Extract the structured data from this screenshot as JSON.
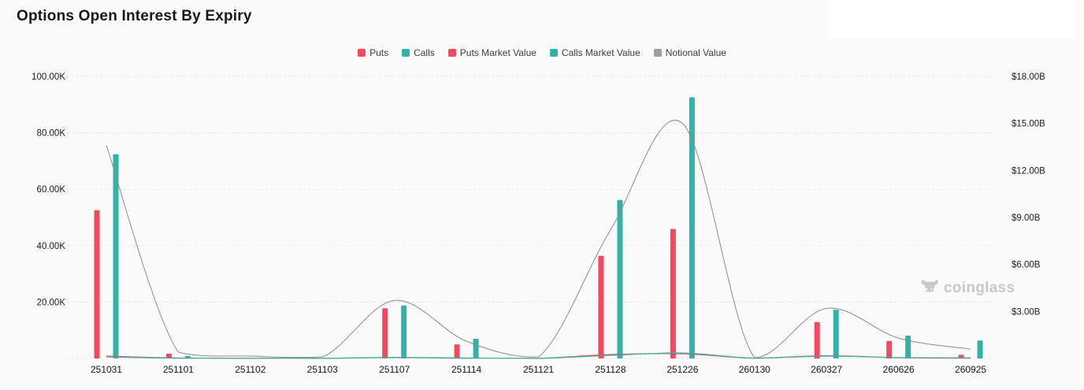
{
  "title": "Options Open Interest By Expiry",
  "watermark": {
    "text": "coinglass",
    "icon": "bull-logo-icon"
  },
  "legend": [
    {
      "label": "Puts",
      "color": "#f5485d"
    },
    {
      "label": "Calls",
      "color": "#32b3a5"
    },
    {
      "label": "Puts Market Value",
      "color": "#f5485d"
    },
    {
      "label": "Calls Market Value",
      "color": "#32b3a5"
    },
    {
      "label": "Notional Value",
      "color": "#9e9e9e"
    }
  ],
  "colors": {
    "background": "#fafafa",
    "panel": "#ffffff",
    "grid": "#e6e6e6",
    "puts": "#f5485d",
    "calls": "#32b3a5",
    "notional_line": "#8c8c8c",
    "axis_text": "#1c1c1c",
    "watermark": "#c6c9cc"
  },
  "chart_data": {
    "type": "bar",
    "subtype": "bar+line combo, dual axis",
    "title": "Options Open Interest By Expiry",
    "categories": [
      "251031",
      "251101",
      "251102",
      "251103",
      "251107",
      "251114",
      "251121",
      "251128",
      "251226",
      "260130",
      "260327",
      "260626",
      "260925"
    ],
    "left_axis": {
      "tick_labels": [
        "100.00K",
        "80.00K",
        "60.00K",
        "40.00K",
        "20.00K"
      ],
      "tick_values": [
        100,
        80,
        60,
        40,
        20
      ],
      "range": [
        0,
        100
      ],
      "unit": "K"
    },
    "right_axis": {
      "tick_labels": [
        "$18.00B",
        "$15.00B",
        "$12.00B",
        "$9.00B",
        "$6.00B",
        "$3.00B"
      ],
      "tick_values": [
        18,
        15,
        12,
        9,
        6,
        3
      ],
      "range": [
        0,
        18
      ],
      "unit": "$B"
    },
    "series": [
      {
        "name": "Puts",
        "type": "bar",
        "axis": "left",
        "unit": "K",
        "color": "#f5485d",
        "values": [
          52.6,
          1.7,
          0.2,
          0.1,
          17.8,
          5.0,
          0.1,
          36.4,
          45.9,
          0.2,
          12.9,
          6.2,
          1.3
        ]
      },
      {
        "name": "Calls",
        "type": "bar",
        "axis": "left",
        "unit": "K",
        "color": "#32b3a5",
        "values": [
          72.4,
          0.9,
          0.2,
          0.1,
          18.8,
          7.0,
          0.1,
          56.2,
          92.6,
          0.2,
          17.3,
          8.1,
          6.4
        ]
      },
      {
        "name": "Puts Market Value",
        "type": "line",
        "axis": "right",
        "unit": "$B",
        "color": "#f5485d",
        "values": [
          0.15,
          0.03,
          0.01,
          0.01,
          0.06,
          0.02,
          0.01,
          0.25,
          0.3,
          0.02,
          0.18,
          0.05,
          0.02
        ]
      },
      {
        "name": "Calls Market Value",
        "type": "line",
        "axis": "right",
        "unit": "$B",
        "color": "#32b3a5",
        "values": [
          0.1,
          0.02,
          0.01,
          0.01,
          0.07,
          0.03,
          0.01,
          0.2,
          0.35,
          0.02,
          0.15,
          0.06,
          0.04
        ]
      },
      {
        "name": "Notional Value",
        "type": "line",
        "axis": "right",
        "unit": "$B",
        "color": "#8c8c8c",
        "values": [
          13.6,
          0.4,
          0.15,
          0.1,
          3.7,
          1.1,
          0.1,
          8.2,
          15.0,
          0.05,
          3.2,
          1.3,
          0.6
        ]
      }
    ],
    "grid": "horizontal dashed lines on, vertical off",
    "legend_position": "top-center",
    "legend_entries": [
      "Puts",
      "Calls",
      "Puts Market Value",
      "Calls Market Value",
      "Notional Value"
    ]
  }
}
